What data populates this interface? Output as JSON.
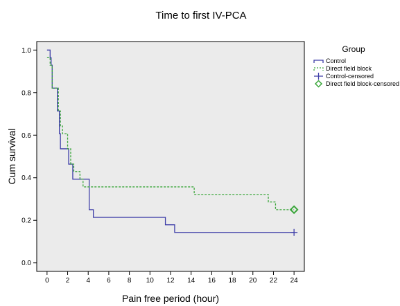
{
  "chart_data": {
    "type": "line",
    "title": "Time to first IV-PCA",
    "xlabel": "Pain free period (hour)",
    "ylabel": "Cum survival",
    "xlim": [
      -1,
      25
    ],
    "ylim": [
      -0.04,
      1.04
    ],
    "x_ticks": [
      0,
      2,
      4,
      6,
      8,
      10,
      12,
      14,
      16,
      18,
      20,
      22,
      24
    ],
    "y_ticks": [
      0.0,
      0.2,
      0.4,
      0.6,
      0.8,
      1.0
    ],
    "y_tick_labels": [
      "0.0",
      "0.2",
      "0.4",
      "0.6",
      "0.8",
      "1.0"
    ],
    "grid": false,
    "background": "#ebebeb",
    "legend": {
      "title": "Group",
      "placement": "right",
      "entries": [
        "Control",
        "Direct field block",
        "Control-censored",
        "Direct field block-censored"
      ]
    },
    "series": [
      {
        "name": "Control",
        "color": "#3d3da8",
        "style": "solid",
        "steps": [
          [
            0,
            1.0
          ],
          [
            0.3,
            0.964
          ],
          [
            0.4,
            0.929
          ],
          [
            0.5,
            0.821
          ],
          [
            1.0,
            0.714
          ],
          [
            1.2,
            0.607
          ],
          [
            1.3,
            0.536
          ],
          [
            2.1,
            0.464
          ],
          [
            2.5,
            0.393
          ],
          [
            4.1,
            0.25
          ],
          [
            4.5,
            0.214
          ],
          [
            11.5,
            0.179
          ],
          [
            12.4,
            0.143
          ],
          [
            24,
            0.143
          ]
        ],
        "censored": [
          [
            24,
            0.143
          ]
        ]
      },
      {
        "name": "Direct field block",
        "color": "#3aa63a",
        "style": "dashed",
        "steps": [
          [
            0,
            0.964
          ],
          [
            0.3,
            0.929
          ],
          [
            0.5,
            0.821
          ],
          [
            1.1,
            0.714
          ],
          [
            1.3,
            0.643
          ],
          [
            1.5,
            0.607
          ],
          [
            2.0,
            0.536
          ],
          [
            2.3,
            0.464
          ],
          [
            2.6,
            0.429
          ],
          [
            3.2,
            0.393
          ],
          [
            3.5,
            0.357
          ],
          [
            14.3,
            0.321
          ],
          [
            21.5,
            0.286
          ],
          [
            22.2,
            0.25
          ],
          [
            24,
            0.25
          ]
        ],
        "censored": [
          [
            24,
            0.25
          ]
        ]
      }
    ]
  }
}
